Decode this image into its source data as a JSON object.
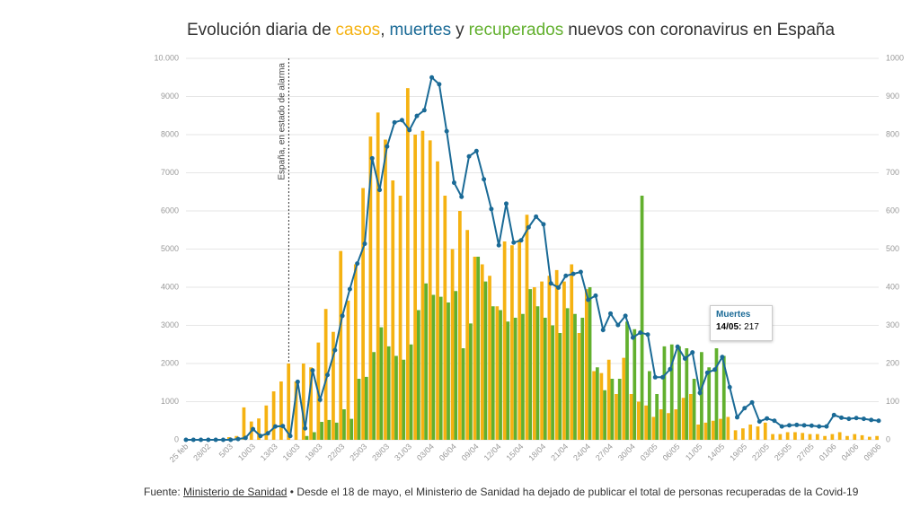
{
  "chart_data": {
    "type": "bar_line",
    "title_parts": [
      "Evolución diaria de",
      ",",
      "y",
      "nuevos con coronavirus en España"
    ],
    "annotation": "España, en estado de alarma",
    "categories": [
      "25 feb",
      null,
      null,
      "28/02",
      null,
      null,
      "5/03",
      null,
      null,
      "10/03",
      null,
      null,
      "13/03",
      null,
      null,
      "16/03",
      null,
      null,
      "19/03",
      null,
      null,
      "22/03",
      null,
      null,
      "25/03",
      null,
      null,
      "28/03",
      null,
      null,
      "31/03",
      null,
      null,
      "03/04",
      null,
      null,
      "06/04",
      null,
      null,
      "09/04",
      null,
      null,
      "12/04",
      null,
      null,
      "15/04",
      null,
      null,
      "18/04",
      null,
      null,
      "21/04",
      null,
      null,
      "24/04",
      null,
      null,
      "27/04",
      null,
      null,
      "30/04",
      null,
      null,
      "03/05",
      null,
      null,
      "06/05",
      null,
      null,
      "11/05",
      null,
      null,
      "14/05",
      null,
      null,
      "19/05",
      null,
      null,
      "22/05",
      null,
      null,
      "25/05",
      null,
      null,
      "27/05",
      null,
      null,
      "01/06",
      null,
      null,
      "04/06",
      null,
      null,
      "09/06"
    ],
    "series": [
      {
        "name": "casos",
        "color": "#f5b212",
        "values": [
          0,
          0,
          0,
          0,
          0,
          0,
          70,
          100,
          850,
          480,
          560,
          900,
          1270,
          1530,
          2000,
          1530,
          2000,
          1900,
          2550,
          3430,
          2830,
          4950,
          3650,
          4600,
          6600,
          7950,
          8580,
          7870,
          6800,
          6400,
          9220,
          8000,
          8100,
          7850,
          7300,
          6400,
          5000,
          6000,
          5500,
          4800,
          4600,
          4300,
          3500,
          5200,
          5100,
          5250,
          5900,
          4000,
          4150,
          4300,
          4450,
          4150,
          4600,
          2800,
          3950,
          1800,
          1750,
          2100,
          1200,
          2150,
          1200,
          1000,
          900,
          600,
          800,
          700,
          800,
          1100,
          1200,
          400,
          450,
          500,
          550,
          600,
          250,
          300,
          400,
          350,
          450,
          150,
          150,
          200,
          200,
          180,
          150,
          150,
          100,
          150,
          200,
          100,
          150,
          120,
          80,
          100
        ]
      },
      {
        "name": "muertes",
        "color": "#1a6a96",
        "axis": "y2",
        "values": [
          0,
          0,
          0,
          0,
          0,
          0,
          0,
          2,
          5,
          28,
          10,
          17,
          35,
          36,
          10,
          152,
          30,
          182,
          105,
          170,
          235,
          325,
          395,
          462,
          514,
          738,
          655,
          769,
          832,
          838,
          812,
          849,
          864,
          950,
          932,
          809,
          674,
          637,
          743,
          757,
          683,
          605,
          510,
          619,
          517,
          523,
          557,
          585,
          565,
          410,
          399,
          430,
          435,
          440,
          367,
          378,
          288,
          331,
          301,
          325,
          268,
          281,
          276,
          164,
          164,
          185,
          244,
          213,
          229,
          123,
          176,
          184,
          217,
          138,
          59,
          83,
          98,
          48,
          56,
          50,
          35,
          38,
          39,
          38,
          37,
          35,
          35,
          65,
          58,
          55,
          57,
          55,
          52,
          50
        ]
      },
      {
        "name": "recuperados",
        "color": "#62b02e",
        "values": [
          0,
          0,
          0,
          0,
          0,
          0,
          0,
          0,
          0,
          0,
          0,
          0,
          0,
          0,
          0,
          0,
          100,
          200,
          470,
          520,
          450,
          800,
          550,
          1600,
          1650,
          2300,
          2950,
          2450,
          2200,
          2100,
          2500,
          3400,
          4100,
          3800,
          3750,
          3600,
          3900,
          2400,
          3050,
          4800,
          4150,
          3500,
          3400,
          3100,
          3200,
          3300,
          3950,
          3500,
          3200,
          3000,
          2800,
          3450,
          3300,
          3200,
          4000,
          1900,
          1300,
          1600,
          1600,
          3100,
          2900,
          6400,
          1800,
          1200,
          2450,
          2500,
          2450,
          2400,
          1600,
          2300,
          1900,
          2400,
          2200,
          null,
          null,
          null,
          null,
          null,
          null,
          null,
          null,
          null,
          null,
          null,
          null,
          null,
          null,
          null,
          null,
          null,
          null,
          null,
          null,
          null
        ]
      }
    ],
    "ylim": [
      0,
      10000
    ],
    "yticks": [
      0,
      1000,
      2000,
      3000,
      4000,
      5000,
      6000,
      7000,
      8000,
      9000,
      {
        "value": 10000,
        "label": "10.000"
      }
    ],
    "y2lim": [
      0,
      1000
    ],
    "y2ticks": [
      0,
      100,
      200,
      300,
      400,
      500,
      600,
      700,
      800,
      900,
      1000
    ],
    "grid": true,
    "tooltip": {
      "title": "Muertes",
      "label": "14/05:",
      "value": 217
    },
    "source_label": "Fuente:",
    "source": "Ministerio de Sanidad",
    "note": "• Desde el 18 de mayo, el Ministerio de Sanidad ha dejado de publicar el total de personas recuperadas de la Covid-19"
  }
}
